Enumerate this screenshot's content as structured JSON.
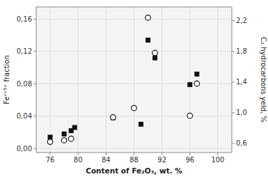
{
  "chart_data": {
    "type": "scatter",
    "xlabel": "Content of Fe₂O₃, wt. %",
    "ylabel": "Feᵛᵛ³⁺ fraction",
    "y2label": "C₂ hydrocarbons yeld, %",
    "xlim": [
      74,
      102
    ],
    "ylim": [
      -0.005,
      0.175
    ],
    "y2lim": [
      0.48,
      2.38
    ],
    "xticks": [
      76,
      80,
      84,
      88,
      92,
      96,
      100
    ],
    "yticks": [
      {
        "value": 0.0,
        "label": "0,00"
      },
      {
        "value": 0.04,
        "label": "0,04"
      },
      {
        "value": 0.08,
        "label": "0,08"
      },
      {
        "value": 0.12,
        "label": "0,12"
      },
      {
        "value": 0.16,
        "label": "0,16"
      }
    ],
    "y2ticks": [
      {
        "value": 0.6,
        "label": "0,6"
      },
      {
        "value": 1.0,
        "label": "1,0"
      },
      {
        "value": 1.4,
        "label": "1,4"
      },
      {
        "value": 1.8,
        "label": "1,8"
      },
      {
        "value": 2.2,
        "label": "2,2"
      }
    ],
    "grid": true,
    "series": [
      {
        "marker": "square",
        "color": "#111111",
        "x": [
          76,
          78,
          79,
          79.5,
          85,
          89,
          90,
          91,
          96,
          97
        ],
        "values": [
          0.014,
          0.018,
          0.022,
          0.026,
          0.038,
          0.03,
          0.134,
          0.112,
          0.079,
          0.092
        ]
      },
      {
        "marker": "circle",
        "color": "#111111",
        "axis": "y2",
        "x": [
          76,
          78,
          79,
          85,
          88,
          90,
          91,
          96,
          97
        ],
        "values": [
          0.62,
          0.64,
          0.66,
          0.94,
          1.06,
          2.24,
          1.78,
          0.96,
          1.38
        ]
      }
    ]
  }
}
